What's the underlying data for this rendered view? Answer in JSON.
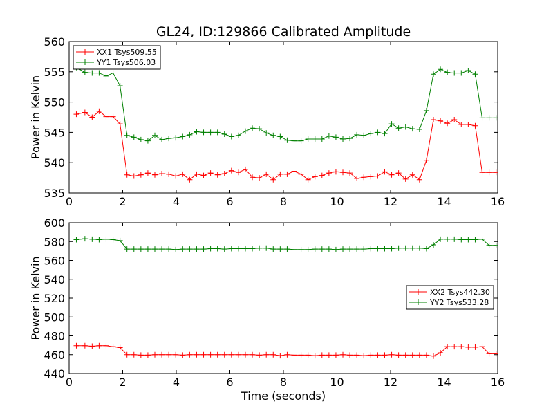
{
  "figure_title": "GL24, ID:129866 Calibrated Amplitude",
  "chart_data": [
    {
      "type": "line",
      "title": "GL24, ID:129866 Calibrated Amplitude",
      "xlabel": "",
      "ylabel": "Power in Kelvin",
      "xlim": [
        0,
        16
      ],
      "ylim": [
        535,
        560
      ],
      "xticks": [
        0,
        2,
        4,
        6,
        8,
        10,
        12,
        14,
        16
      ],
      "yticks": [
        535,
        540,
        545,
        550,
        555,
        560
      ],
      "grid": false,
      "legend_position": "upper-left",
      "x": [
        0.27,
        0.59,
        0.86,
        1.12,
        1.38,
        1.64,
        1.9,
        2.16,
        2.42,
        2.68,
        2.94,
        3.2,
        3.46,
        3.72,
        3.98,
        4.24,
        4.5,
        4.76,
        5.02,
        5.28,
        5.54,
        5.8,
        6.06,
        6.32,
        6.58,
        6.84,
        7.1,
        7.36,
        7.62,
        7.88,
        8.14,
        8.4,
        8.66,
        8.92,
        9.18,
        9.44,
        9.7,
        9.96,
        10.22,
        10.48,
        10.74,
        11.0,
        11.26,
        11.52,
        11.78,
        12.04,
        12.3,
        12.56,
        12.82,
        13.08,
        13.34,
        13.6,
        13.86,
        14.12,
        14.38,
        14.64,
        14.9,
        15.16,
        15.42,
        15.68,
        15.94
      ],
      "series": [
        {
          "name": "XX1 Tsys509.55",
          "color": "#ff0000",
          "values": [
            548.0,
            548.3,
            547.5,
            548.5,
            547.6,
            547.6,
            546.4,
            538.0,
            537.8,
            538.0,
            538.3,
            538.0,
            538.2,
            538.1,
            537.8,
            538.1,
            537.2,
            538.1,
            537.9,
            538.3,
            538.0,
            538.2,
            538.7,
            538.4,
            538.9,
            537.6,
            537.5,
            538.1,
            537.2,
            538.1,
            538.1,
            538.6,
            538.1,
            537.2,
            537.7,
            537.9,
            538.3,
            538.5,
            538.4,
            538.3,
            537.4,
            537.6,
            537.7,
            537.8,
            538.5,
            538.0,
            538.3,
            537.3,
            538.0,
            537.2,
            540.4,
            547.1,
            546.9,
            546.5,
            547.1,
            546.3,
            546.3,
            546.1,
            538.4,
            538.4,
            538.4
          ]
        },
        {
          "name": "YY1 Tsys506.03",
          "color": "#008000",
          "values": [
            555.7,
            554.9,
            554.8,
            554.8,
            554.3,
            554.8,
            552.7,
            544.5,
            544.2,
            543.8,
            543.6,
            544.5,
            543.8,
            544.0,
            544.1,
            544.3,
            544.6,
            545.1,
            545.0,
            545.0,
            545.0,
            544.7,
            544.3,
            544.5,
            545.2,
            545.7,
            545.6,
            544.9,
            544.5,
            544.3,
            543.7,
            543.6,
            543.6,
            543.9,
            543.9,
            543.9,
            544.4,
            544.2,
            543.9,
            544.0,
            544.6,
            544.5,
            544.8,
            545.0,
            544.8,
            546.4,
            545.7,
            545.9,
            545.6,
            545.5,
            548.6,
            554.6,
            555.4,
            554.9,
            554.8,
            554.8,
            555.2,
            554.6,
            547.4,
            547.4,
            547.4
          ]
        }
      ]
    },
    {
      "type": "line",
      "title": "",
      "xlabel": "Time (seconds)",
      "ylabel": "Power in Kelvin",
      "xlim": [
        0,
        16
      ],
      "ylim": [
        440,
        600
      ],
      "xticks": [
        0,
        2,
        4,
        6,
        8,
        10,
        12,
        14,
        16
      ],
      "yticks": [
        440,
        460,
        480,
        500,
        520,
        540,
        560,
        580,
        600
      ],
      "grid": false,
      "legend_position": "center-right",
      "x": [
        0.27,
        0.59,
        0.86,
        1.12,
        1.38,
        1.64,
        1.9,
        2.16,
        2.42,
        2.68,
        2.94,
        3.2,
        3.46,
        3.72,
        3.98,
        4.24,
        4.5,
        4.76,
        5.02,
        5.28,
        5.54,
        5.8,
        6.06,
        6.32,
        6.58,
        6.84,
        7.1,
        7.36,
        7.62,
        7.88,
        8.14,
        8.4,
        8.66,
        8.92,
        9.18,
        9.44,
        9.7,
        9.96,
        10.22,
        10.48,
        10.74,
        11.0,
        11.26,
        11.52,
        11.78,
        12.04,
        12.3,
        12.56,
        12.82,
        13.08,
        13.34,
        13.6,
        13.86,
        14.12,
        14.38,
        14.64,
        14.9,
        15.16,
        15.42,
        15.68,
        15.94
      ],
      "series": [
        {
          "name": "XX2 Tsys442.30",
          "color": "#ff0000",
          "values": [
            469.5,
            469.5,
            469.0,
            469.5,
            469.5,
            468.5,
            467.5,
            460.0,
            460.0,
            459.5,
            459.5,
            460.0,
            460.0,
            460.0,
            460.0,
            459.5,
            460.0,
            460.0,
            460.0,
            460.0,
            460.0,
            460.0,
            460.0,
            460.0,
            460.0,
            460.0,
            459.5,
            460.0,
            460.0,
            459.0,
            460.0,
            459.5,
            459.5,
            459.5,
            459.0,
            459.5,
            459.5,
            459.5,
            460.0,
            459.5,
            459.5,
            459.0,
            459.5,
            459.5,
            459.5,
            460.0,
            459.5,
            459.5,
            459.5,
            459.5,
            459.5,
            458.5,
            462.0,
            468.5,
            468.5,
            468.5,
            468.0,
            468.0,
            468.5,
            461.0,
            461.0
          ]
        },
        {
          "name": "YY2 Tsys533.28",
          "color": "#008000",
          "values": [
            582.0,
            583.0,
            582.5,
            582.0,
            582.5,
            582.0,
            581.0,
            572.0,
            572.0,
            572.0,
            572.0,
            572.0,
            572.0,
            572.0,
            571.5,
            572.0,
            572.0,
            572.0,
            572.0,
            572.5,
            572.5,
            572.0,
            572.5,
            572.5,
            572.5,
            572.5,
            573.0,
            573.0,
            572.0,
            572.0,
            572.0,
            571.5,
            571.5,
            571.5,
            572.0,
            572.0,
            572.0,
            571.5,
            572.0,
            572.0,
            572.0,
            572.0,
            572.5,
            572.5,
            572.5,
            572.5,
            573.0,
            573.0,
            573.0,
            573.0,
            572.5,
            576.5,
            582.5,
            582.5,
            582.5,
            582.0,
            582.0,
            582.0,
            582.5,
            576.0,
            576.0
          ]
        }
      ]
    }
  ]
}
